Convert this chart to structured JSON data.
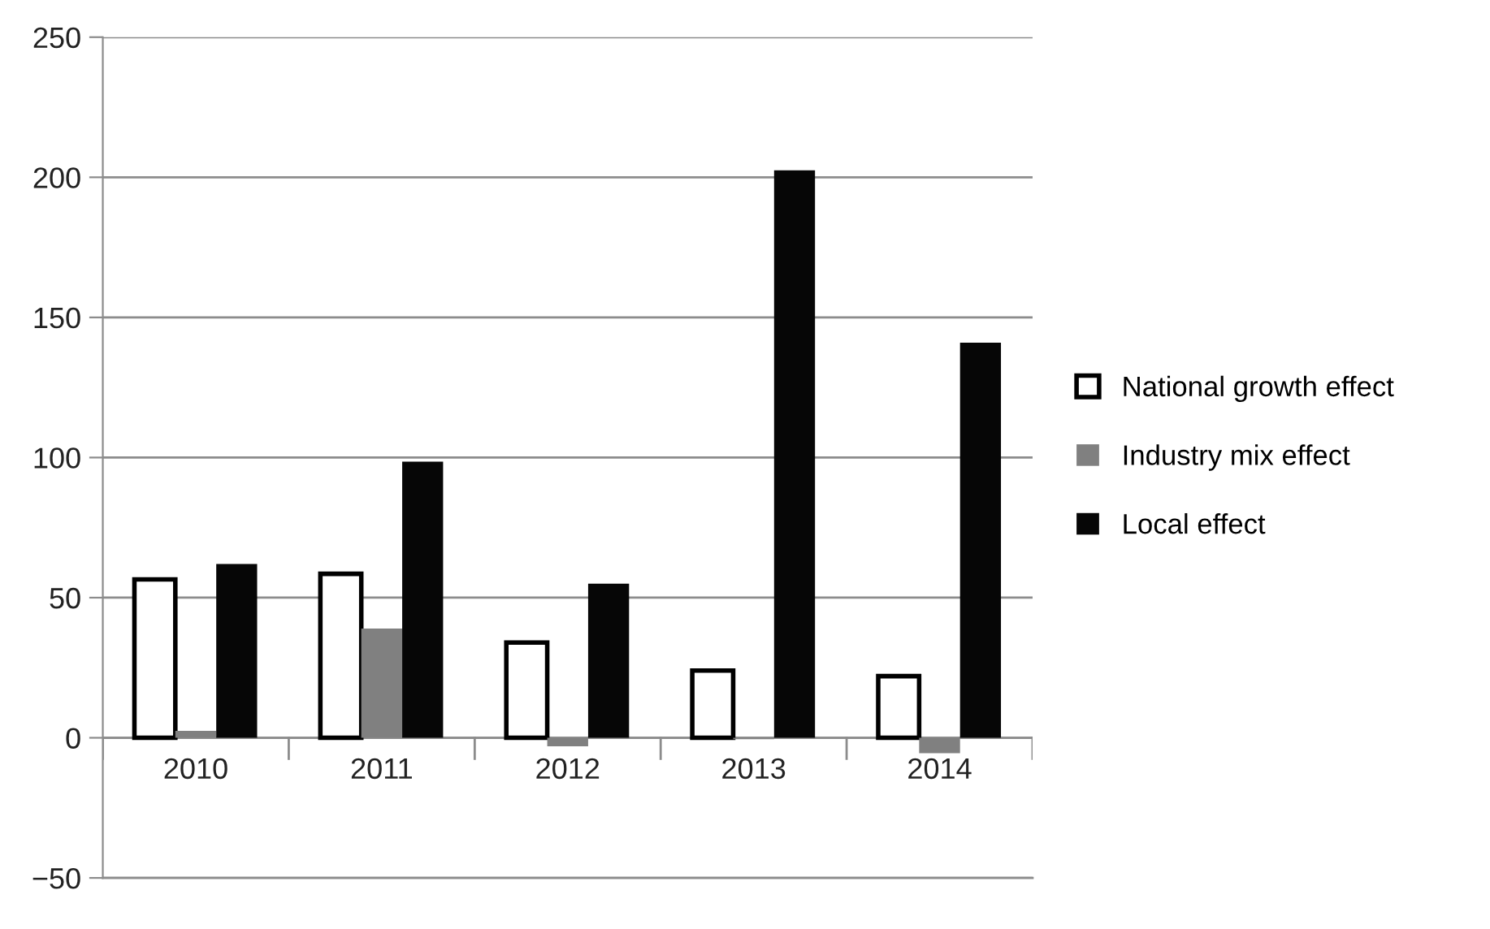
{
  "chart_data": {
    "type": "bar",
    "categories": [
      "2010",
      "2011",
      "2012",
      "2013",
      "2014"
    ],
    "series": [
      {
        "name": "National growth effect",
        "color": "#ffffff",
        "values": [
          56.5,
          58.5,
          34,
          24,
          22
        ]
      },
      {
        "name": "Industry mix effect",
        "color": "#808080",
        "values": [
          2.5,
          39,
          -3,
          -0.5,
          -5.5
        ]
      },
      {
        "name": "Local effect",
        "color": "#060606",
        "values": [
          62,
          98.5,
          55,
          202.5,
          141
        ]
      }
    ],
    "ylim": [
      -50,
      250
    ],
    "yticks": [
      {
        "value": -50,
        "label": "−50"
      },
      0,
      50,
      100,
      150,
      200,
      250
    ],
    "grid": "y",
    "legend": "right"
  }
}
